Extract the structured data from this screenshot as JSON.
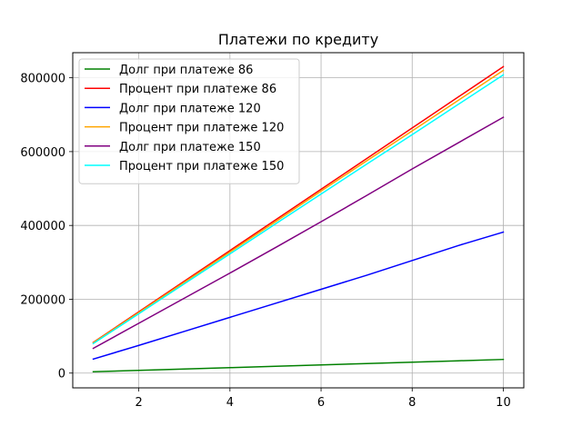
{
  "chart_data": {
    "type": "line",
    "title": "Платежи по кредиту",
    "xlabel": "",
    "ylabel": "",
    "x": [
      1,
      2,
      3,
      4,
      5,
      6,
      7,
      8,
      9,
      10
    ],
    "xlim": [
      0.55,
      10.45
    ],
    "ylim": [
      -40000,
      868000
    ],
    "xticks": [
      2,
      4,
      6,
      8,
      10
    ],
    "xtick_labels": [
      "2",
      "4",
      "6",
      "8",
      "10"
    ],
    "yticks": [
      0,
      200000,
      400000,
      600000,
      800000
    ],
    "ytick_labels": [
      "0",
      "200000",
      "400000",
      "600000",
      "800000"
    ],
    "grid": true,
    "legend_position": "upper-left",
    "series": [
      {
        "name": "Долг при платеже 86",
        "color": "#008000",
        "values": [
          3700,
          7400,
          11100,
          14800,
          18500,
          22200,
          25900,
          29600,
          33300,
          37000
        ]
      },
      {
        "name": "Процент при платеже 86",
        "color": "#ff0000",
        "values": [
          83000,
          166000,
          249000,
          332000,
          415000,
          498000,
          581000,
          664000,
          747000,
          830000
        ]
      },
      {
        "name": "Долг при платеже 120",
        "color": "#0000ff",
        "values": [
          38000,
          75000,
          113000,
          151000,
          189000,
          227000,
          265000,
          305000,
          345000,
          382000
        ]
      },
      {
        "name": "Процент при платеже 120",
        "color": "#ffa500",
        "values": [
          82000,
          164000,
          246000,
          328000,
          410000,
          493000,
          575000,
          656000,
          738000,
          820000
        ]
      },
      {
        "name": "Долг при платеже 150",
        "color": "#800080",
        "values": [
          67000,
          135000,
          203000,
          271000,
          340000,
          410000,
          481000,
          553000,
          623000,
          693000
        ]
      },
      {
        "name": "Процент при платеже 150",
        "color": "#00ffff",
        "values": [
          80000,
          161000,
          242000,
          323000,
          404000,
          485000,
          566000,
          646000,
          727000,
          808000
        ]
      }
    ]
  }
}
